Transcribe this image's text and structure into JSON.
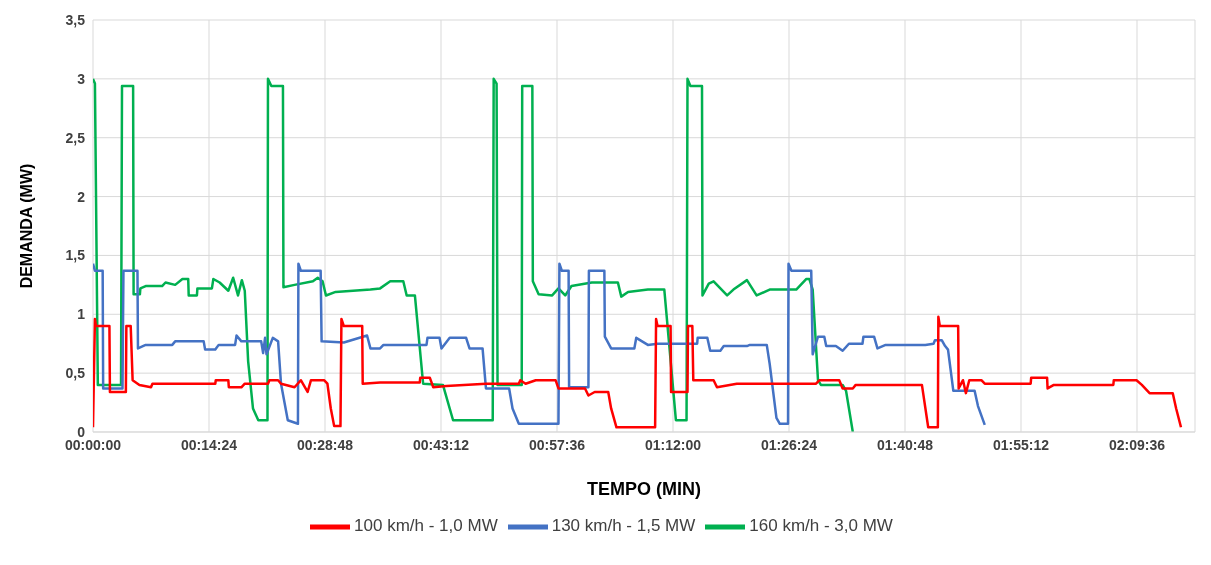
{
  "chart_data": {
    "type": "line",
    "xlabel": "TEMPO (MIN)",
    "ylabel": "DEMANDA (MW)",
    "xlim": [
      0,
      2.28
    ],
    "xticks": [
      {
        "value": 0,
        "label": "00:00:00"
      },
      {
        "value": 0.24,
        "label": "00:14:24"
      },
      {
        "value": 0.48,
        "label": "00:28:48"
      },
      {
        "value": 0.72,
        "label": "00:43:12"
      },
      {
        "value": 0.96,
        "label": "00:57:36"
      },
      {
        "value": 1.2,
        "label": "01:12:00"
      },
      {
        "value": 1.44,
        "label": "01:26:24"
      },
      {
        "value": 1.68,
        "label": "01:40:48"
      },
      {
        "value": 1.92,
        "label": "01:55:12"
      },
      {
        "value": 2.16,
        "label": "02:09:36"
      }
    ],
    "ylim": [
      0,
      3.5
    ],
    "yticks": [
      0,
      {
        "value": 0.5,
        "label": "0,5"
      },
      1,
      {
        "value": 1.5,
        "label": "1,5"
      },
      2,
      {
        "value": 2.5,
        "label": "2,5"
      },
      3,
      {
        "value": 3.5,
        "label": "3,5"
      }
    ],
    "grid": true,
    "legend": "bottom",
    "marker": "none",
    "line_style": "solid",
    "series": [
      {
        "name": "160 km/h - 3,0 MW",
        "color": "#00b050",
        "x": [
          0,
          0.004,
          0.01,
          0.058,
          0.06,
          0.083,
          0.084,
          0.097,
          0.098,
          0.109,
          0.143,
          0.15,
          0.17,
          0.185,
          0.197,
          0.198,
          0.215,
          0.216,
          0.246,
          0.249,
          0.262,
          0.28,
          0.29,
          0.3,
          0.308,
          0.314,
          0.321,
          0.331,
          0.342,
          0.361,
          0.362,
          0.369,
          0.393,
          0.394,
          0.417,
          0.455,
          0.465,
          0.475,
          0.482,
          0.502,
          0.574,
          0.594,
          0.615,
          0.642,
          0.649,
          0.666,
          0.683,
          0.724,
          0.745,
          0.827,
          0.829,
          0.835,
          0.837,
          0.887,
          0.888,
          0.909,
          0.91,
          0.922,
          0.95,
          0.963,
          0.977,
          0.99,
          1.032,
          1.086,
          1.093,
          1.107,
          1.148,
          1.182,
          1.206,
          1.228,
          1.23,
          1.236,
          1.26,
          1.261,
          1.274,
          1.284,
          1.312,
          1.325,
          1.353,
          1.373,
          1.4,
          1.455,
          1.476,
          1.482,
          1.489,
          1.5,
          1.506,
          1.551,
          1.558,
          1.572
        ],
        "values": [
          3.0,
          2.96,
          0.4,
          0.4,
          2.94,
          2.94,
          1.17,
          1.17,
          1.22,
          1.24,
          1.24,
          1.27,
          1.25,
          1.3,
          1.3,
          1.16,
          1.16,
          1.22,
          1.22,
          1.3,
          1.27,
          1.2,
          1.31,
          1.16,
          1.29,
          1.2,
          0.6,
          0.2,
          0.1,
          0.1,
          3.0,
          2.94,
          2.94,
          1.23,
          1.25,
          1.28,
          1.31,
          1.28,
          1.16,
          1.19,
          1.21,
          1.22,
          1.28,
          1.28,
          1.16,
          1.16,
          0.41,
          0.4,
          0.1,
          0.1,
          3.0,
          2.96,
          0.4,
          0.4,
          2.94,
          2.94,
          1.28,
          1.17,
          1.16,
          1.22,
          1.16,
          1.24,
          1.27,
          1.27,
          1.15,
          1.19,
          1.21,
          1.21,
          0.1,
          0.1,
          3.0,
          2.94,
          2.94,
          1.16,
          1.26,
          1.28,
          1.16,
          1.21,
          1.29,
          1.16,
          1.21,
          1.21,
          1.3,
          1.3,
          1.21,
          0.44,
          0.4,
          0.4,
          0.35,
          0.0
        ]
      },
      {
        "name": "130 km/h - 1,5 MW",
        "color": "#4472c4",
        "x": [
          0,
          0.004,
          0.02,
          0.021,
          0.061,
          0.063,
          0.092,
          0.093,
          0.109,
          0.164,
          0.17,
          0.229,
          0.232,
          0.253,
          0.26,
          0.294,
          0.297,
          0.307,
          0.348,
          0.352,
          0.356,
          0.359,
          0.372,
          0.383,
          0.389,
          0.403,
          0.424,
          0.425,
          0.43,
          0.471,
          0.473,
          0.519,
          0.567,
          0.574,
          0.594,
          0.601,
          0.69,
          0.692,
          0.717,
          0.721,
          0.738,
          0.772,
          0.779,
          0.806,
          0.813,
          0.861,
          0.868,
          0.881,
          0.963,
          0.965,
          0.97,
          0.984,
          0.985,
          1.025,
          1.026,
          1.058,
          1.059,
          1.072,
          1.12,
          1.124,
          1.148,
          1.168,
          1.25,
          1.251,
          1.271,
          1.277,
          1.298,
          1.305,
          1.353,
          1.359,
          1.394,
          1.4,
          1.414,
          1.421,
          1.438,
          1.439,
          1.445,
          1.486,
          1.489,
          1.5,
          1.513,
          1.517,
          1.537,
          1.551,
          1.564,
          1.592,
          1.594,
          1.616,
          1.623,
          1.64,
          1.722,
          1.739,
          1.742,
          1.756,
          1.763,
          1.769,
          1.78,
          1.824,
          1.831,
          1.845
        ],
        "values": [
          1.43,
          1.37,
          1.37,
          0.37,
          0.37,
          1.37,
          1.37,
          0.71,
          0.74,
          0.74,
          0.77,
          0.77,
          0.7,
          0.7,
          0.74,
          0.74,
          0.82,
          0.77,
          0.77,
          0.67,
          0.8,
          0.66,
          0.8,
          0.77,
          0.41,
          0.1,
          0.07,
          1.43,
          1.37,
          1.37,
          0.77,
          0.76,
          0.82,
          0.71,
          0.71,
          0.74,
          0.74,
          0.8,
          0.8,
          0.71,
          0.8,
          0.8,
          0.71,
          0.71,
          0.37,
          0.37,
          0.2,
          0.07,
          0.07,
          1.43,
          1.37,
          1.37,
          0.38,
          0.38,
          1.37,
          1.37,
          0.81,
          0.71,
          0.71,
          0.8,
          0.74,
          0.75,
          0.75,
          0.8,
          0.8,
          0.69,
          0.69,
          0.73,
          0.73,
          0.74,
          0.74,
          0.58,
          0.12,
          0.07,
          0.07,
          1.43,
          1.37,
          1.37,
          0.66,
          0.81,
          0.81,
          0.73,
          0.73,
          0.69,
          0.75,
          0.75,
          0.81,
          0.81,
          0.71,
          0.74,
          0.74,
          0.75,
          0.78,
          0.78,
          0.73,
          0.7,
          0.35,
          0.35,
          0.22,
          0.06
        ]
      },
      {
        "name": "100 km/h - 1,0 MW",
        "color": "#ff0000",
        "x": [
          0,
          0.004,
          0.006,
          0.034,
          0.035,
          0.068,
          0.069,
          0.078,
          0.082,
          0.096,
          0.12,
          0.123,
          0.253,
          0.254,
          0.28,
          0.281,
          0.307,
          0.314,
          0.362,
          0.365,
          0.383,
          0.389,
          0.417,
          0.43,
          0.444,
          0.451,
          0.478,
          0.485,
          0.492,
          0.499,
          0.512,
          0.514,
          0.519,
          0.557,
          0.558,
          0.594,
          0.676,
          0.677,
          0.697,
          0.704,
          0.731,
          0.813,
          0.881,
          0.884,
          0.895,
          0.916,
          0.957,
          0.963,
          1.018,
          1.025,
          1.038,
          1.066,
          1.072,
          1.083,
          1.163,
          1.165,
          1.168,
          1.195,
          1.196,
          1.23,
          1.231,
          1.24,
          1.242,
          1.284,
          1.291,
          1.332,
          1.496,
          1.503,
          1.544,
          1.551,
          1.572,
          1.578,
          1.715,
          1.728,
          1.748,
          1.749,
          1.752,
          1.79,
          1.791,
          1.8,
          1.806,
          1.813,
          1.821,
          1.838,
          1.845,
          1.94,
          1.941,
          1.974,
          1.975,
          1.988,
          2.111,
          2.112,
          2.159,
          2.17,
          2.186,
          2.234,
          2.241,
          2.251
        ],
        "values": [
          0.04,
          0.96,
          0.9,
          0.9,
          0.34,
          0.34,
          0.9,
          0.9,
          0.44,
          0.4,
          0.38,
          0.41,
          0.41,
          0.44,
          0.44,
          0.38,
          0.38,
          0.41,
          0.41,
          0.44,
          0.44,
          0.41,
          0.38,
          0.44,
          0.34,
          0.44,
          0.44,
          0.41,
          0.2,
          0.05,
          0.05,
          0.96,
          0.9,
          0.9,
          0.41,
          0.42,
          0.42,
          0.46,
          0.46,
          0.38,
          0.39,
          0.41,
          0.41,
          0.44,
          0.41,
          0.44,
          0.44,
          0.37,
          0.37,
          0.31,
          0.34,
          0.34,
          0.2,
          0.04,
          0.04,
          0.96,
          0.9,
          0.9,
          0.34,
          0.34,
          0.9,
          0.9,
          0.44,
          0.44,
          0.38,
          0.41,
          0.41,
          0.44,
          0.44,
          0.37,
          0.37,
          0.4,
          0.4,
          0.04,
          0.04,
          0.98,
          0.9,
          0.9,
          0.37,
          0.44,
          0.33,
          0.44,
          0.44,
          0.44,
          0.41,
          0.41,
          0.46,
          0.46,
          0.37,
          0.4,
          0.4,
          0.44,
          0.44,
          0.4,
          0.33,
          0.33,
          0.2,
          0.04
        ]
      }
    ]
  }
}
